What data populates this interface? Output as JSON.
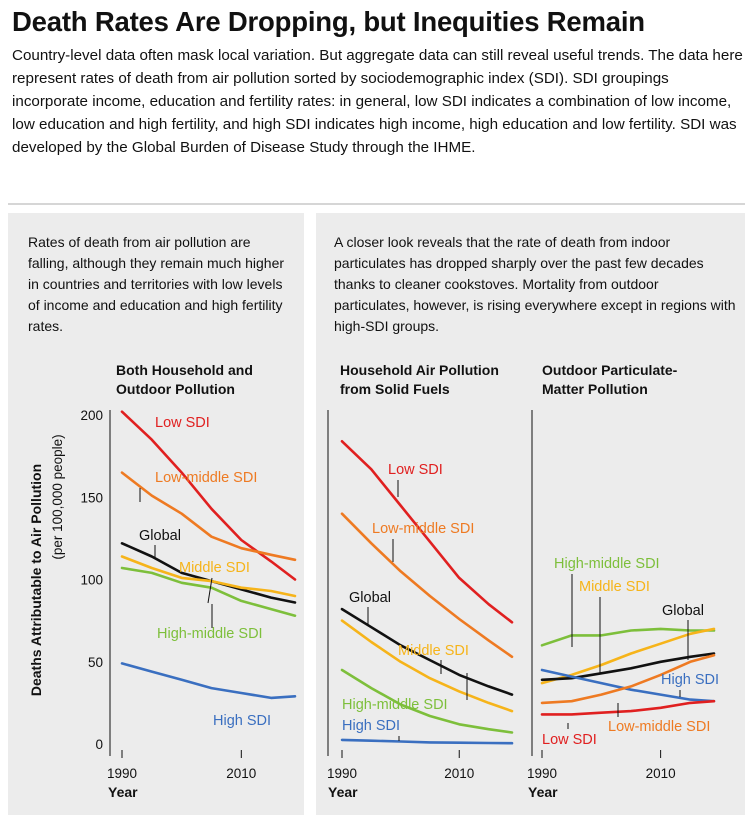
{
  "title": "Death Rates Are Dropping, but Inequities Remain",
  "intro": "Country-level data often mask local variation. But aggregate data can still reveal useful trends. The data here represent rates of death from air pollution sorted by sociodemographic index (SDI). SDI groupings incorporate income, education and fertility rates: in general, low SDI indicates a combination of low income, low education and high fertility, and high SDI indicates high income, high education and low fertility. SDI was developed by the Global Burden of Disease Study through the IHME.",
  "left_text": "Rates of death from air pollution are falling, although they remain much higher in countries and territories with low levels of income and education and high fertility rates.",
  "right_text": "A closer look reveals that the rate of death from indoor particulates has dropped sharply over the past few decades thanks to cleaner cookstoves. Mortality from outdoor particulates, however, is rising everywhere except in regions with high-SDI groups.",
  "y_axis": {
    "label": "Deaths Attributable to Air Pollution",
    "sublabel": "(per 100,000 people)",
    "ticks": [
      "200",
      "150",
      "100",
      "50",
      "0"
    ],
    "ylim": [
      0,
      200
    ]
  },
  "x_axis": {
    "label": "Year",
    "ticks": [
      "1990",
      "2010"
    ],
    "xlim": [
      1990,
      2019
    ]
  },
  "colors": {
    "Low SDI": "#e02020",
    "Low-middle SDI": "#ee7a22",
    "Middle SDI": "#f6b41a",
    "High-middle SDI": "#7dbf3b",
    "Global": "#111111",
    "High SDI": "#3a6fc0"
  },
  "chart_data": [
    {
      "type": "line",
      "title_lines": [
        "Both Household and",
        "Outdoor Pollution"
      ],
      "xlabel": "Year",
      "ylabel": "Deaths Attributable to Air Pollution",
      "ylim": [
        0,
        200
      ],
      "x": [
        1990,
        1995,
        2000,
        2005,
        2010,
        2015,
        2019
      ],
      "series": [
        {
          "name": "Low SDI",
          "values": [
            202,
            185,
            165,
            143,
            124,
            111,
            100
          ]
        },
        {
          "name": "Low-middle SDI",
          "values": [
            165,
            151,
            140,
            126,
            119,
            115,
            112
          ]
        },
        {
          "name": "Global",
          "values": [
            122,
            114,
            104,
            99,
            94,
            89,
            86
          ]
        },
        {
          "name": "Middle SDI",
          "values": [
            114,
            107,
            101,
            99,
            95,
            93,
            90
          ]
        },
        {
          "name": "High-middle SDI",
          "values": [
            107,
            104,
            98,
            95,
            87,
            82,
            78
          ]
        },
        {
          "name": "High SDI",
          "values": [
            49,
            44,
            39,
            34,
            31,
            28,
            29
          ]
        }
      ]
    },
    {
      "type": "line",
      "title_lines": [
        "Household Air Pollution",
        "from Solid Fuels"
      ],
      "xlabel": "Year",
      "ylim": [
        0,
        200
      ],
      "x": [
        1990,
        1995,
        2000,
        2005,
        2010,
        2015,
        2019
      ],
      "series": [
        {
          "name": "Low SDI",
          "values": [
            184,
            167,
            145,
            123,
            101,
            85,
            74
          ]
        },
        {
          "name": "Low-middle SDI",
          "values": [
            140,
            122,
            105,
            90,
            76,
            63,
            53
          ]
        },
        {
          "name": "Global",
          "values": [
            82,
            71,
            60,
            51,
            42,
            35,
            30
          ]
        },
        {
          "name": "Middle SDI",
          "values": [
            75,
            62,
            50,
            40,
            32,
            25,
            20
          ]
        },
        {
          "name": "High-middle SDI",
          "values": [
            45,
            34,
            24,
            17,
            12,
            9,
            7
          ]
        },
        {
          "name": "High SDI",
          "values": [
            2.5,
            2,
            1.5,
            1,
            0.8,
            0.6,
            0.5
          ]
        }
      ]
    },
    {
      "type": "line",
      "title_lines": [
        "Outdoor Particulate-",
        "Matter Pollution"
      ],
      "xlabel": "Year",
      "ylim": [
        0,
        200
      ],
      "x": [
        1990,
        1995,
        2000,
        2005,
        2010,
        2015,
        2019
      ],
      "series": [
        {
          "name": "High-middle SDI",
          "values": [
            60,
            66,
            66,
            69,
            70,
            69,
            69
          ]
        },
        {
          "name": "Middle SDI",
          "values": [
            37,
            42,
            48,
            55,
            61,
            67,
            70
          ]
        },
        {
          "name": "Global",
          "values": [
            39,
            40,
            43,
            46,
            50,
            53,
            55
          ]
        },
        {
          "name": "High SDI",
          "values": [
            45,
            41,
            37,
            33,
            30,
            27,
            26
          ]
        },
        {
          "name": "Low-middle SDI",
          "values": [
            25,
            26,
            30,
            35,
            42,
            50,
            54
          ]
        },
        {
          "name": "Low SDI",
          "values": [
            18,
            18,
            19,
            20,
            22,
            25,
            26
          ]
        }
      ]
    }
  ]
}
